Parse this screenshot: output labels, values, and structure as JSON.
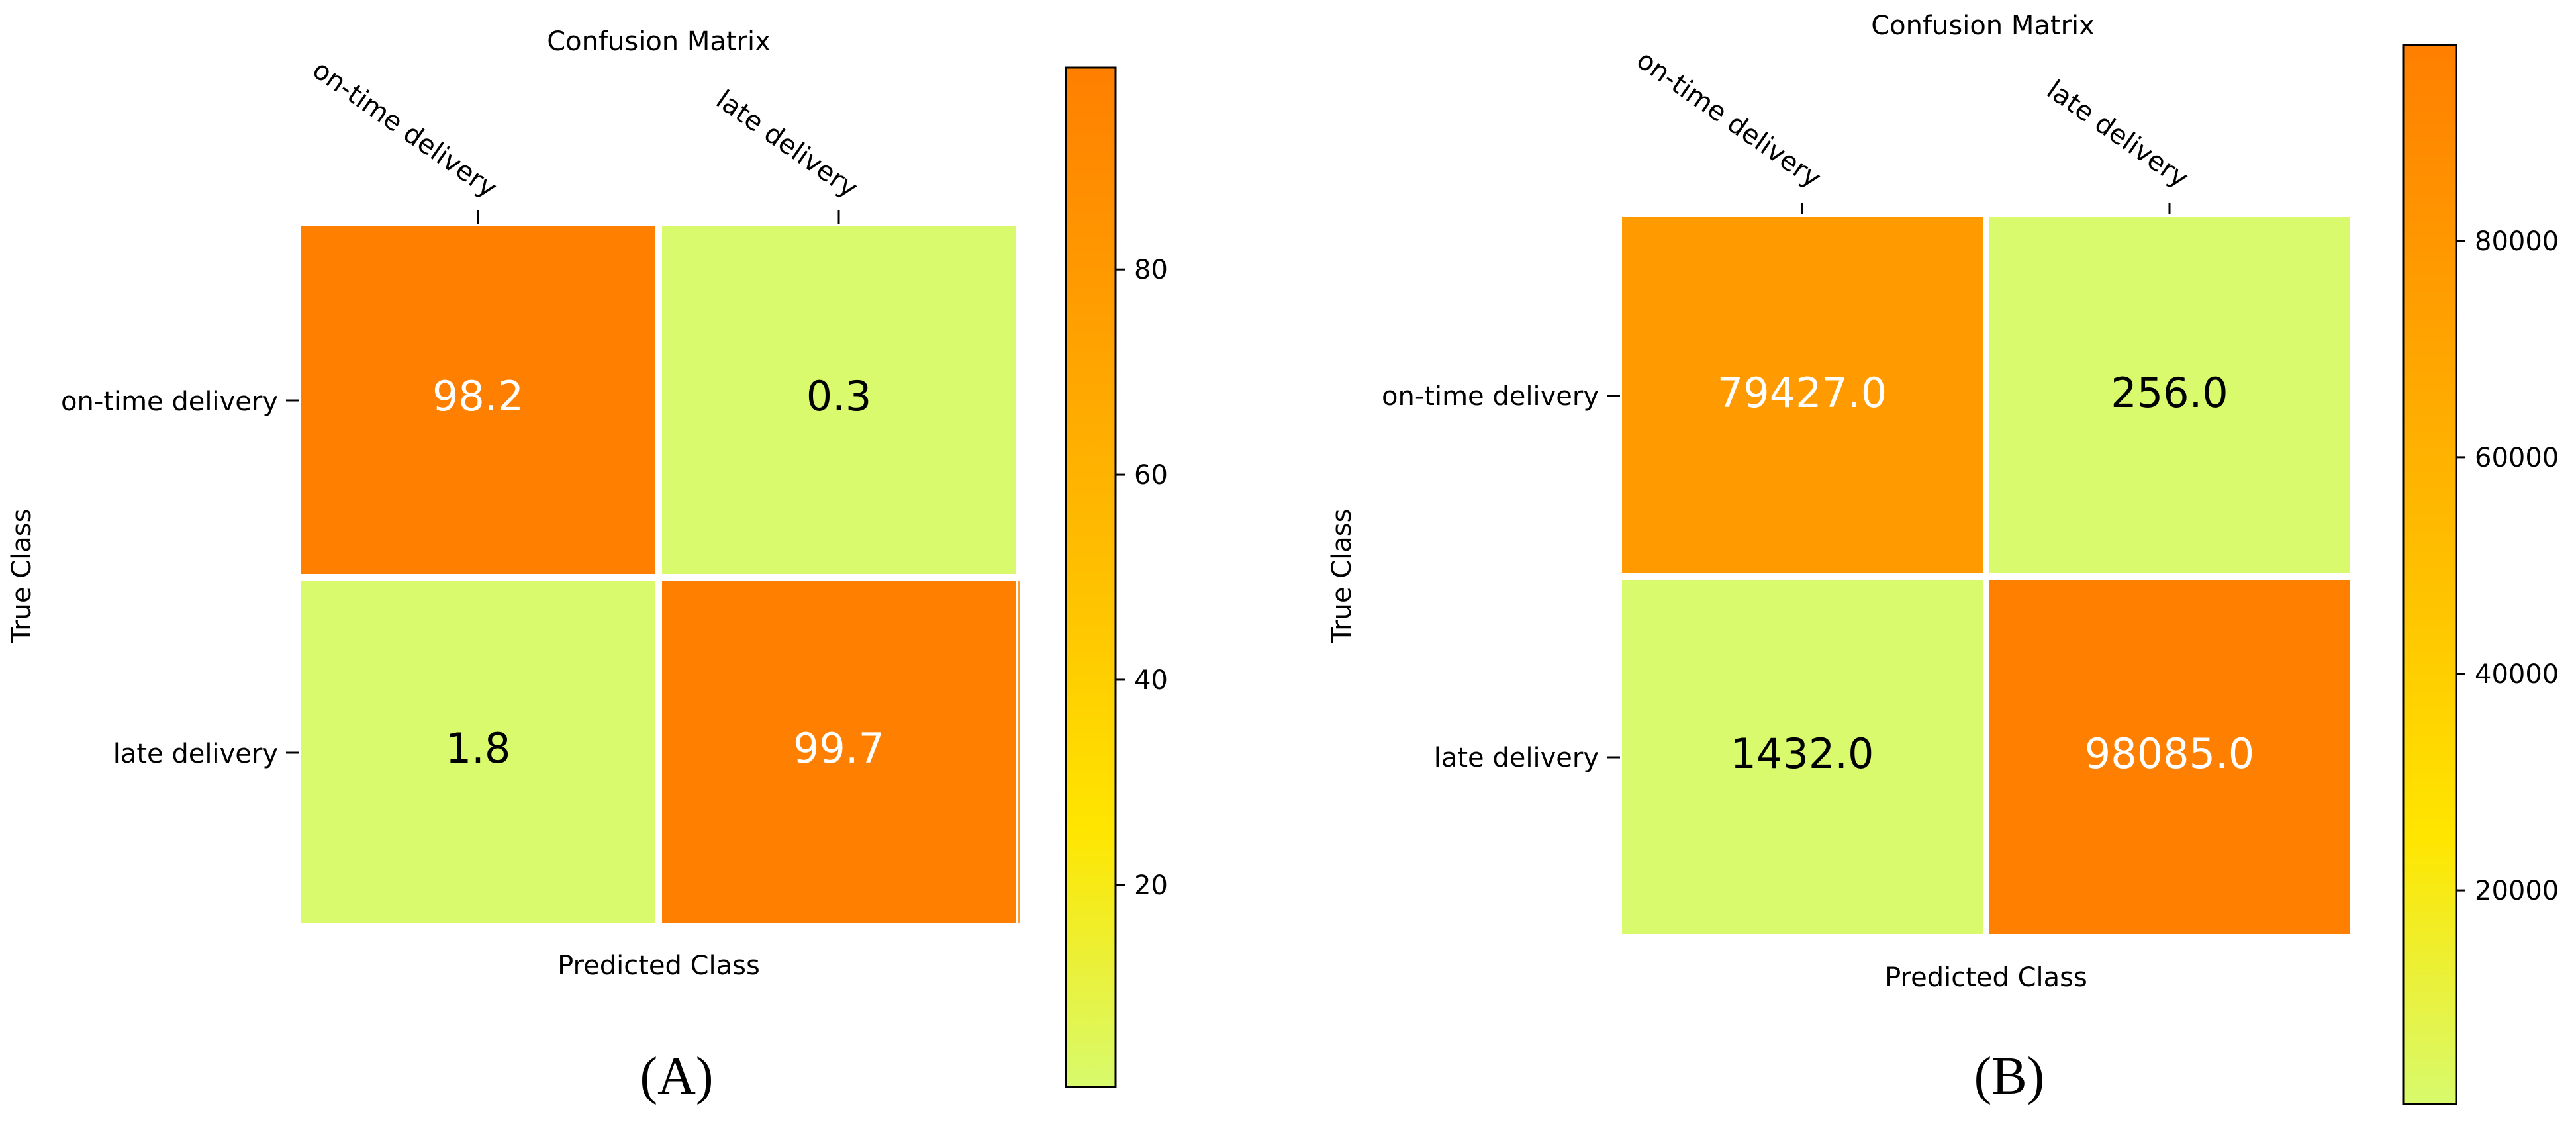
{
  "colormap": {
    "low": "#d8fa6c",
    "mid": "#ffe600",
    "high": "#ff7f00",
    "grid_line": "#ffffff"
  },
  "chart_data": [
    {
      "panel_label": "(A)",
      "type": "heatmap",
      "title": "Confusion Matrix",
      "xlabel": "Predicted Class",
      "ylabel": "True Class",
      "x_categories": [
        "on-time delivery",
        "late delivery"
      ],
      "y_categories": [
        "on-time delivery",
        "late delivery"
      ],
      "values": [
        [
          98.2,
          0.3
        ],
        [
          1.8,
          99.7
        ]
      ],
      "cell_labels": [
        [
          "98.2",
          "0.3"
        ],
        [
          "1.8",
          "99.7"
        ]
      ],
      "colorbar": {
        "min": 0.3,
        "max": 99.7,
        "ticks": [
          20,
          40,
          60,
          80
        ],
        "tick_labels": [
          "20",
          "40",
          "60",
          "80"
        ]
      }
    },
    {
      "panel_label": "(B)",
      "type": "heatmap",
      "title": "Confusion Matrix",
      "xlabel": "Predicted Class",
      "ylabel": "True Class",
      "x_categories": [
        "on-time delivery",
        "late delivery"
      ],
      "y_categories": [
        "on-time delivery",
        "late delivery"
      ],
      "values": [
        [
          79427,
          256
        ],
        [
          1432,
          98085
        ]
      ],
      "cell_labels": [
        [
          "79427.0",
          "256.0"
        ],
        [
          "1432.0",
          "98085.0"
        ]
      ],
      "colorbar": {
        "min": 256,
        "max": 98085,
        "ticks": [
          20000,
          40000,
          60000,
          80000
        ],
        "tick_labels": [
          "20000",
          "40000",
          "60000",
          "80000"
        ]
      }
    }
  ]
}
